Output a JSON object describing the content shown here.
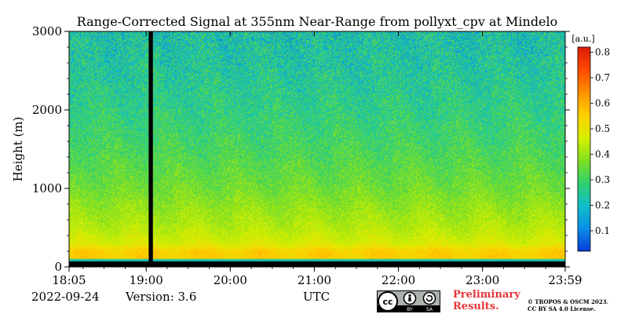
{
  "chart_data": {
    "type": "heatmap",
    "title": "Range-Corrected Signal at 355nm Near-Range from pollyxt_cpv at Mindelo",
    "xlabel": "UTC",
    "ylabel": "Height (m)",
    "x_ticks": [
      "18:05",
      "19:00",
      "20:00",
      "21:00",
      "22:00",
      "23:00",
      "23:59"
    ],
    "x_tick_hours": [
      18.0833,
      19.0,
      20.0,
      21.0,
      22.0,
      23.0,
      23.9833
    ],
    "xlim_hours": [
      18.0833,
      23.9833
    ],
    "y_ticks": [
      0,
      1000,
      2000,
      3000
    ],
    "ylim": [
      0,
      3000
    ],
    "colorbar": {
      "unit": "[a.u.]",
      "ticks": [
        0.1,
        0.2,
        0.3,
        0.4,
        0.5,
        0.6,
        0.7,
        0.8
      ],
      "range": [
        0.02,
        0.82
      ],
      "colors": [
        "#0a3cd8",
        "#0a8ee8",
        "#10c0c8",
        "#30d070",
        "#80e020",
        "#d8f000",
        "#ffd000",
        "#ff9000",
        "#ff4a00",
        "#dc1a0a"
      ]
    },
    "data_gap_hours": [
      19.03,
      19.08
    ],
    "profile": [
      {
        "height": 0,
        "value": 0.0
      },
      {
        "height": 100,
        "value": 0.55
      },
      {
        "height": 200,
        "value": 0.55
      },
      {
        "height": 300,
        "value": 0.47
      },
      {
        "height": 500,
        "value": 0.43
      },
      {
        "height": 800,
        "value": 0.39
      },
      {
        "height": 1000,
        "value": 0.36
      },
      {
        "height": 1500,
        "value": 0.31
      },
      {
        "height": 2000,
        "value": 0.27
      },
      {
        "height": 2500,
        "value": 0.24
      },
      {
        "height": 3000,
        "value": 0.22
      }
    ]
  },
  "footer": {
    "date": "2022-09-24",
    "version": "Version: 3.6",
    "preliminary_line1": "Preliminary",
    "preliminary_line2": "Results.",
    "credit_line1": "© TROPOS & OSCM 2023.",
    "credit_line2": "CC BY SA 4.0 License.",
    "cc_badge": {
      "cc": "cc",
      "by": "BY",
      "sa": "SA"
    }
  }
}
